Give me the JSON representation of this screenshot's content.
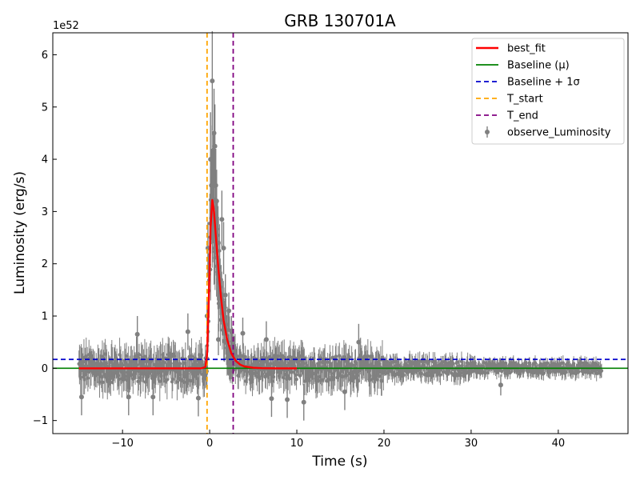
{
  "chart_data": {
    "type": "scatter",
    "title": "GRB 130701A",
    "xlabel": "Time (s)",
    "ylabel": "Luminosity (erg/s)",
    "y_offset_label": "1e52",
    "y_scale_factor": 1e+52,
    "xlim": [
      -18,
      48
    ],
    "ylim": [
      -1.25,
      6.42
    ],
    "xticks": [
      -10,
      0,
      10,
      20,
      30,
      40
    ],
    "yticks": [
      -1,
      0,
      1,
      2,
      3,
      4,
      5,
      6
    ],
    "xtick_labels": [
      "−10",
      "0",
      "10",
      "20",
      "30",
      "40"
    ],
    "ytick_labels": [
      "−1",
      "0",
      "1",
      "2",
      "3",
      "4",
      "5",
      "6"
    ],
    "grid": false,
    "legend_position": "top-right",
    "colors": {
      "best_fit": "#ff0000",
      "baseline": "#008000",
      "baseline_sigma": "#0000cc",
      "t_start": "#ffa500",
      "t_end": "#800080",
      "observed": "#808080"
    },
    "legend": [
      {
        "label": "best_fit",
        "style": "solid",
        "color": "#ff0000"
      },
      {
        "label": "Baseline (μ)",
        "style": "solid",
        "color": "#008000"
      },
      {
        "label": "Baseline + 1σ",
        "style": "dashed",
        "color": "#0000cc"
      },
      {
        "label": "T_start",
        "style": "dashed",
        "color": "#ffa500"
      },
      {
        "label": "T_end",
        "style": "dashed",
        "color": "#800080"
      },
      {
        "label": "observe_Luminosity",
        "style": "errorbar",
        "color": "#808080"
      }
    ],
    "baseline_mu": 0.0,
    "baseline_plus_sigma": 0.17,
    "t_start": -0.3,
    "t_end": 2.7,
    "observed_range": [
      -15,
      45
    ],
    "best_fit": {
      "x": [
        -15,
        -1,
        -0.5,
        -0.3,
        -0.1,
        0.1,
        0.3,
        0.5,
        0.7,
        1.0,
        1.3,
        1.6,
        2.0,
        2.5,
        3.0,
        3.5,
        4.0,
        5.0,
        6.0,
        8.0,
        10.0
      ],
      "y": [
        0.0,
        0.0,
        0.02,
        0.25,
        1.3,
        2.7,
        3.22,
        3.0,
        2.55,
        1.9,
        1.35,
        0.92,
        0.55,
        0.28,
        0.14,
        0.07,
        0.035,
        0.01,
        0.003,
        0.0,
        0.0
      ]
    },
    "observed_highlights": [
      {
        "x": 0.1,
        "y": 4.0,
        "err": 0.9
      },
      {
        "x": 0.3,
        "y": 5.5,
        "err": 0.95
      },
      {
        "x": 0.5,
        "y": 4.5,
        "err": 0.85
      },
      {
        "x": 0.6,
        "y": 4.25,
        "err": 0.8
      },
      {
        "x": 0.4,
        "y": 3.8,
        "err": 0.7
      },
      {
        "x": 0.2,
        "y": 3.5,
        "err": 0.7
      },
      {
        "x": 0.7,
        "y": 3.5,
        "err": 0.7
      },
      {
        "x": 0.8,
        "y": 3.2,
        "err": 0.6
      },
      {
        "x": 1.4,
        "y": 2.85,
        "err": 0.55
      },
      {
        "x": 1.0,
        "y": 2.4,
        "err": 0.5
      },
      {
        "x": -0.2,
        "y": 2.3,
        "err": 0.5
      },
      {
        "x": 1.6,
        "y": 2.3,
        "err": 0.5
      },
      {
        "x": -0.1,
        "y": 1.8,
        "err": 0.4
      },
      {
        "x": 1.2,
        "y": 1.7,
        "err": 0.4
      },
      {
        "x": 1.8,
        "y": 1.4,
        "err": 0.4
      },
      {
        "x": 2.2,
        "y": 1.1,
        "err": 0.35
      },
      {
        "x": -0.3,
        "y": 1.0,
        "err": 0.35
      },
      {
        "x": 2.5,
        "y": 0.7,
        "err": 0.3
      },
      {
        "x": 1.0,
        "y": 0.55,
        "err": 0.3
      },
      {
        "x": 3.8,
        "y": 0.67,
        "err": 0.3
      },
      {
        "x": -8.3,
        "y": 0.65,
        "err": 0.35
      },
      {
        "x": -2.5,
        "y": 0.7,
        "err": 0.35
      },
      {
        "x": 6.5,
        "y": 0.55,
        "err": 0.35
      },
      {
        "x": 17.1,
        "y": 0.5,
        "err": 0.35
      },
      {
        "x": -14.7,
        "y": -0.55,
        "err": 0.35
      },
      {
        "x": -9.3,
        "y": -0.55,
        "err": 0.35
      },
      {
        "x": -6.5,
        "y": -0.55,
        "err": 0.35
      },
      {
        "x": -1.3,
        "y": -0.57,
        "err": 0.35
      },
      {
        "x": 7.1,
        "y": -0.58,
        "err": 0.35
      },
      {
        "x": 8.9,
        "y": -0.6,
        "err": 0.35
      },
      {
        "x": 10.8,
        "y": -0.65,
        "err": 0.35
      },
      {
        "x": 15.5,
        "y": -0.45,
        "err": 0.35
      },
      {
        "x": 33.4,
        "y": -0.32,
        "err": 0.2
      }
    ]
  }
}
